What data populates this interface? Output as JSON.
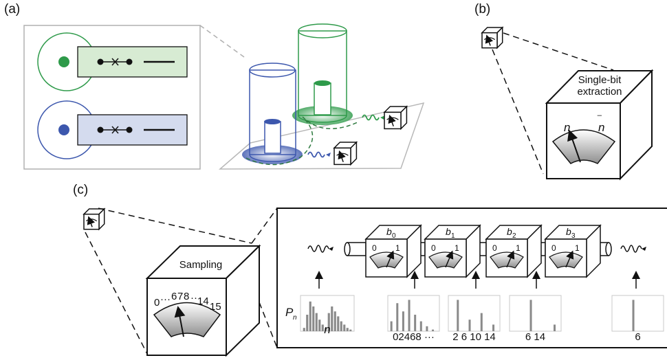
{
  "panels": {
    "a": "(a)",
    "b": "(b)",
    "c": "(c)"
  },
  "panel_b": {
    "meter_title_line1": "Single-bit",
    "meter_title_line2": "extraction",
    "symbol_n": "n",
    "symbol_nbar": "n",
    "bar_mark": "‾"
  },
  "panel_c": {
    "meter_title": "Sampling",
    "dial_ticks": [
      "0",
      "···",
      "6",
      "7",
      "8",
      "··",
      "14",
      "15"
    ],
    "bit_modules": [
      {
        "bit": "b",
        "sub": "0",
        "tick0": "0",
        "tick1": "1"
      },
      {
        "bit": "b",
        "sub": "1",
        "tick0": "0",
        "tick1": "1"
      },
      {
        "bit": "b",
        "sub": "2",
        "tick0": "0",
        "tick1": "1"
      },
      {
        "bit": "b",
        "sub": "3",
        "tick0": "0",
        "tick1": "1"
      }
    ],
    "histogram_ylabel": "P",
    "histogram_ylabel_sub": "n",
    "histograms": [
      {
        "xlabel": "n",
        "values": [
          0.1,
          0.5,
          0.9,
          0.75,
          0.55,
          0.35,
          0.2,
          0.1,
          0.55,
          0.75,
          0.6,
          0.45,
          0.3,
          0.2,
          0.1,
          0.05
        ]
      },
      {
        "xlabel": "02468 ···",
        "values": [
          0.3,
          0,
          0.85,
          0,
          0.6,
          0,
          0.95,
          0,
          0.5,
          0,
          0.3,
          0,
          0.15,
          0,
          0.05,
          0
        ]
      },
      {
        "xlabel": "2  6  10 14",
        "values": [
          0,
          0,
          0.95,
          0,
          0,
          0,
          0.35,
          0,
          0,
          0,
          0.55,
          0,
          0,
          0,
          0.2,
          0
        ]
      },
      {
        "xlabel": "6        14",
        "values": [
          0,
          0,
          0,
          0,
          0,
          0,
          0.95,
          0,
          0,
          0,
          0,
          0,
          0,
          0,
          0.2,
          0
        ]
      },
      {
        "xlabel": "6",
        "values": [
          0,
          0,
          0,
          0,
          0,
          0,
          0.95,
          0,
          0,
          0,
          0,
          0,
          0,
          0,
          0,
          0
        ]
      }
    ]
  },
  "colors": {
    "green": "#2e9a4a",
    "green_fill": "#d7ebd3",
    "blue": "#3c57ad",
    "blue_fill": "#d4dbee",
    "grey": "#8c8c8c",
    "bar": "#8a8a8a"
  }
}
